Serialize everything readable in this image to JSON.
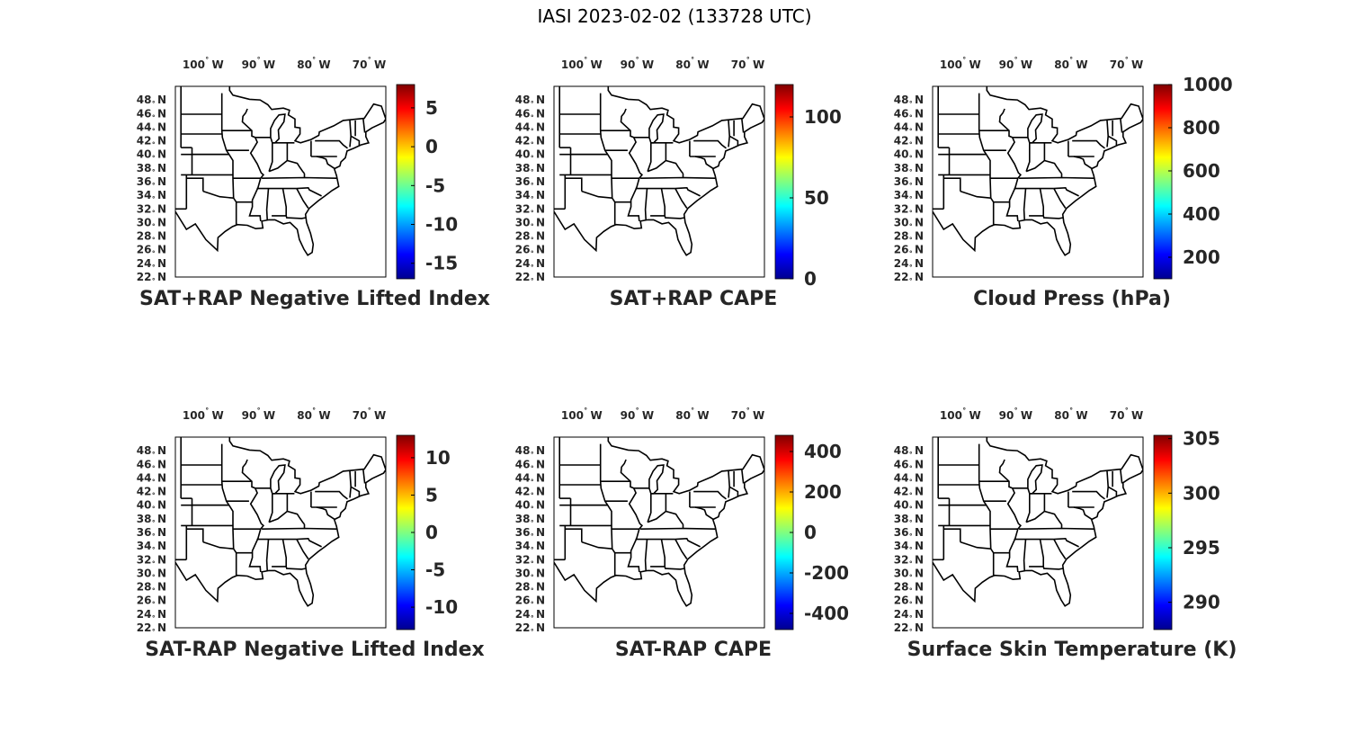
{
  "title": "IASI 2023-02-02 (133728 UTC)",
  "lon_ticks": [
    {
      "value": -100,
      "text": "100",
      "dir": "W"
    },
    {
      "value": -90,
      "text": "90",
      "dir": "W"
    },
    {
      "value": -80,
      "text": "80",
      "dir": "W"
    },
    {
      "value": -70,
      "text": "70",
      "dir": "W"
    }
  ],
  "lat_ticks": [
    {
      "value": 48,
      "text": "48",
      "dir": "N"
    },
    {
      "value": 46,
      "text": "46",
      "dir": "N"
    },
    {
      "value": 44,
      "text": "44",
      "dir": "N"
    },
    {
      "value": 42,
      "text": "42",
      "dir": "N"
    },
    {
      "value": 40,
      "text": "40",
      "dir": "N"
    },
    {
      "value": 38,
      "text": "38",
      "dir": "N"
    },
    {
      "value": 36,
      "text": "36",
      "dir": "N"
    },
    {
      "value": 34,
      "text": "34",
      "dir": "N"
    },
    {
      "value": 32,
      "text": "32",
      "dir": "N"
    },
    {
      "value": 30,
      "text": "30",
      "dir": "N"
    },
    {
      "value": 28,
      "text": "28",
      "dir": "N"
    },
    {
      "value": 26,
      "text": "26",
      "dir": "N"
    },
    {
      "value": 24,
      "text": "24",
      "dir": "N"
    },
    {
      "value": 22,
      "text": "22",
      "dir": "N"
    }
  ],
  "map_extent": {
    "lon": [
      -105,
      -67
    ],
    "lat": [
      22,
      50
    ]
  },
  "colormap": [
    "#00008f",
    "#0000ff",
    "#0080ff",
    "#00ffff",
    "#80ff80",
    "#ffff00",
    "#ff8000",
    "#ff0000",
    "#800000"
  ],
  "panels": [
    {
      "title": "SAT+RAP Negative Lifted Index",
      "cbar_range": [
        -17,
        8
      ],
      "cbar_ticks": [
        {
          "value": 5,
          "text": "5"
        },
        {
          "value": 0,
          "text": "0"
        },
        {
          "value": -5,
          "text": "-5"
        },
        {
          "value": -10,
          "text": "-10"
        },
        {
          "value": -15,
          "text": "-15"
        }
      ]
    },
    {
      "title": "SAT+RAP CAPE",
      "cbar_range": [
        0,
        120
      ],
      "cbar_ticks": [
        {
          "value": 100,
          "text": "100"
        },
        {
          "value": 50,
          "text": "50"
        },
        {
          "value": 0,
          "text": "0"
        }
      ]
    },
    {
      "title": "Cloud Press (hPa)",
      "cbar_range": [
        100,
        1000
      ],
      "cbar_ticks": [
        {
          "value": 1000,
          "text": "1000"
        },
        {
          "value": 800,
          "text": "800"
        },
        {
          "value": 600,
          "text": "600"
        },
        {
          "value": 400,
          "text": "400"
        },
        {
          "value": 200,
          "text": "200"
        }
      ]
    },
    {
      "title": "SAT-RAP Negative Lifted Index",
      "cbar_range": [
        -13,
        13
      ],
      "cbar_ticks": [
        {
          "value": 10,
          "text": "10"
        },
        {
          "value": 5,
          "text": "5"
        },
        {
          "value": 0,
          "text": "0"
        },
        {
          "value": -5,
          "text": "-5"
        },
        {
          "value": -10,
          "text": "-10"
        }
      ]
    },
    {
      "title": "SAT-RAP CAPE",
      "cbar_range": [
        -480,
        480
      ],
      "cbar_ticks": [
        {
          "value": 400,
          "text": "400"
        },
        {
          "value": 200,
          "text": "200"
        },
        {
          "value": 0,
          "text": "0"
        },
        {
          "value": -200,
          "text": "-200"
        },
        {
          "value": -400,
          "text": "-400"
        }
      ]
    },
    {
      "title": "Surface Skin Temperature (K)",
      "cbar_range": [
        287.5,
        305.3
      ],
      "cbar_ticks": [
        {
          "value": 305,
          "text": "305"
        },
        {
          "value": 300,
          "text": "300"
        },
        {
          "value": 295,
          "text": "295"
        },
        {
          "value": 290,
          "text": "290"
        }
      ]
    }
  ]
}
